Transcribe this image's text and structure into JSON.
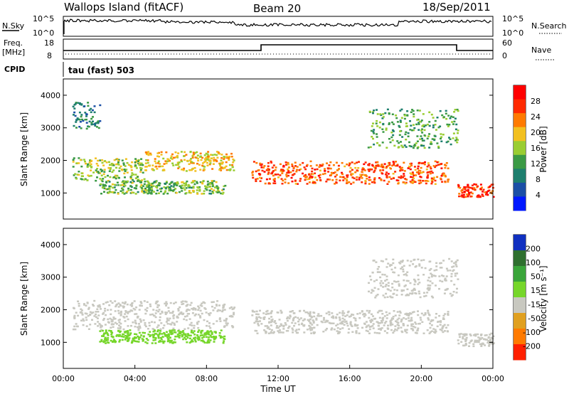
{
  "header": {
    "station": "Wallops Island (fitACF)",
    "beam": "Beam 20",
    "date": "18/Sep/2011"
  },
  "strip": {
    "nsky_label": "N.Sky",
    "nsky_ticks": [
      "10^5",
      "10^0"
    ],
    "nsearch_label": "N.Search",
    "nsearch_ticks": [
      "10^5",
      "10^0"
    ],
    "freq_label": "Freq.",
    "freq_unit": "[MHz]",
    "freq_ticks": [
      "18",
      "8"
    ],
    "nave_label": "Nave",
    "nave_ticks": [
      "60",
      "0"
    ],
    "cpid_label": "CPID",
    "cpid_text": "tau (fast) 503"
  },
  "chart_data": [
    {
      "type": "heatmap",
      "name": "power",
      "ylabel": "Slant Range [km]",
      "yticks": [
        "1000",
        "2000",
        "3000",
        "4000"
      ],
      "ylim": [
        200,
        4500
      ],
      "xlim": [
        "00:00",
        "24:00"
      ],
      "colorbar_label": "Power [dB]",
      "colorbar_ticks": [
        "28",
        "24",
        "20",
        "16",
        "12",
        "8",
        "4"
      ],
      "bands": [
        {
          "t": [
            0.5,
            4.5
          ],
          "range_km": [
            1400,
            2100
          ],
          "level_db": 16
        },
        {
          "t": [
            4.5,
            9.5
          ],
          "range_km": [
            1700,
            2300
          ],
          "level_db": 20
        },
        {
          "t": [
            10.5,
            21.5
          ],
          "range_km": [
            1300,
            2000
          ],
          "level_db": 26
        },
        {
          "t": [
            22.0,
            24.0
          ],
          "range_km": [
            900,
            1300
          ],
          "level_db": 28
        },
        {
          "t": [
            2.0,
            9.0
          ],
          "range_km": [
            1000,
            1400
          ],
          "level_db": 14
        },
        {
          "t": [
            0.5,
            2.0
          ],
          "range_km": [
            3000,
            3800
          ],
          "level_db": 8
        },
        {
          "t": [
            17.0,
            22.0
          ],
          "range_km": [
            2400,
            3600
          ],
          "level_db": 12
        }
      ]
    },
    {
      "type": "heatmap",
      "name": "velocity",
      "ylabel": "Slant Range [km]",
      "yticks": [
        "1000",
        "2000",
        "3000",
        "4000"
      ],
      "ylim": [
        200,
        4500
      ],
      "xlim": [
        "00:00",
        "24:00"
      ],
      "xlabel": "Time UT",
      "xticks": [
        "00:00",
        "04:00",
        "08:00",
        "12:00",
        "16:00",
        "20:00",
        "00:00"
      ],
      "colorbar_label": "Velocity [m s⁻¹]",
      "colorbar_ticks": [
        "200",
        "100",
        "50",
        "15",
        "-15",
        "-50",
        "-100",
        "-200"
      ],
      "bands": [
        {
          "t": [
            0.5,
            9.5
          ],
          "range_km": [
            1400,
            2300
          ],
          "velocity": 0
        },
        {
          "t": [
            10.5,
            21.5
          ],
          "range_km": [
            1300,
            2000
          ],
          "velocity": 0
        },
        {
          "t": [
            2.0,
            9.0
          ],
          "range_km": [
            1000,
            1400
          ],
          "velocity": 40
        },
        {
          "t": [
            22.0,
            24.0
          ],
          "range_km": [
            900,
            1300
          ],
          "velocity": 0
        },
        {
          "t": [
            17.0,
            22.0
          ],
          "range_km": [
            2400,
            3600
          ],
          "velocity": 0
        }
      ]
    }
  ],
  "colors": {
    "power_scale": [
      "#0018ff",
      "#1b4fa6",
      "#1e7f6e",
      "#3b9a45",
      "#9acd32",
      "#f2c020",
      "#ff7a00",
      "#ff2a00",
      "#ff0000"
    ],
    "velocity_scale": [
      "#1030c0",
      "#2f6f2f",
      "#3aa53a",
      "#76d62a",
      "#c8c8c0",
      "#e0a020",
      "#ff7a00",
      "#ff2000"
    ]
  }
}
